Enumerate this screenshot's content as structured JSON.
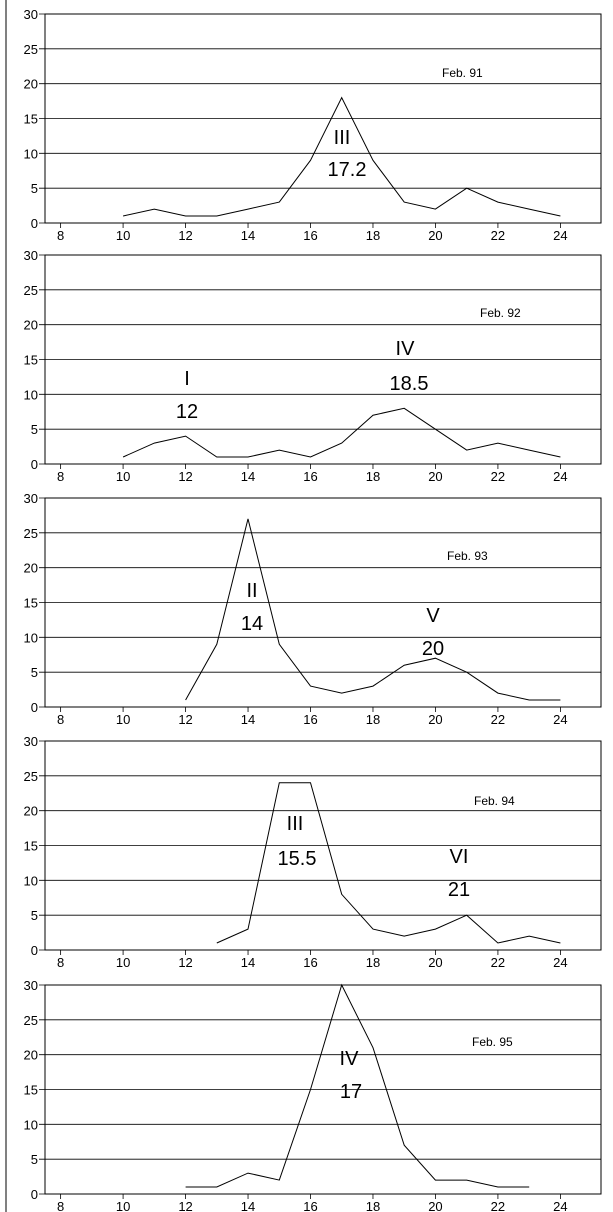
{
  "chart_data": [
    {
      "type": "line",
      "label": "Feb. 91",
      "x": [
        10,
        11,
        12,
        13,
        14,
        15,
        16,
        17,
        18,
        19,
        20,
        21,
        22,
        23,
        24
      ],
      "y": [
        1,
        2,
        1,
        1,
        2,
        3,
        9,
        18,
        9,
        3,
        2,
        5,
        3,
        2,
        1
      ],
      "peaks": [
        {
          "numeral": "III",
          "value": "17.2",
          "x": 17
        }
      ],
      "xticks": [
        8,
        10,
        12,
        14,
        16,
        18,
        20,
        22,
        24
      ],
      "yticks": [
        0,
        5,
        10,
        15,
        20,
        25,
        30
      ],
      "xlim": [
        7.5,
        25.3
      ],
      "ylim": [
        0,
        30
      ],
      "grid": true
    },
    {
      "type": "line",
      "label": "Feb. 92",
      "x": [
        10,
        11,
        12,
        13,
        14,
        15,
        16,
        17,
        18,
        19,
        20,
        21,
        22,
        23,
        24
      ],
      "y": [
        1,
        3,
        4,
        1,
        1,
        2,
        1,
        3,
        7,
        8,
        5,
        2,
        3,
        2,
        1
      ],
      "peaks": [
        {
          "numeral": "I",
          "value": "12",
          "x": 12
        },
        {
          "numeral": "IV",
          "value": "18.5",
          "x": 19
        }
      ],
      "xticks": [
        8,
        10,
        12,
        14,
        16,
        18,
        20,
        22,
        24
      ],
      "yticks": [
        0,
        5,
        10,
        15,
        20,
        25,
        30
      ],
      "xlim": [
        7.5,
        25.3
      ],
      "ylim": [
        0,
        30
      ],
      "grid": true
    },
    {
      "type": "line",
      "label": "Feb. 93",
      "x": [
        12,
        13,
        14,
        15,
        16,
        17,
        18,
        19,
        20,
        21,
        22,
        23,
        24
      ],
      "y": [
        1,
        9,
        27,
        9,
        3,
        2,
        3,
        6,
        7,
        5,
        2,
        1,
        1
      ],
      "peaks": [
        {
          "numeral": "II",
          "value": "14",
          "x": 14
        },
        {
          "numeral": "V",
          "value": "20",
          "x": 20
        }
      ],
      "xticks": [
        8,
        10,
        12,
        14,
        16,
        18,
        20,
        22,
        24
      ],
      "yticks": [
        0,
        5,
        10,
        15,
        20,
        25,
        30
      ],
      "xlim": [
        7.5,
        25.3
      ],
      "ylim": [
        0,
        30
      ],
      "grid": true
    },
    {
      "type": "line",
      "label": "Feb. 94",
      "x": [
        13,
        14,
        15,
        16,
        17,
        18,
        19,
        20,
        21,
        22,
        23,
        24
      ],
      "y": [
        1,
        3,
        24,
        24,
        8,
        3,
        2,
        3,
        5,
        1,
        2,
        1
      ],
      "peaks": [
        {
          "numeral": "III",
          "value": "15.5",
          "x": 15.5
        },
        {
          "numeral": "VI",
          "value": "21",
          "x": 21
        }
      ],
      "xticks": [
        8,
        10,
        12,
        14,
        16,
        18,
        20,
        22,
        24
      ],
      "yticks": [
        0,
        5,
        10,
        15,
        20,
        25,
        30
      ],
      "xlim": [
        7.5,
        25.3
      ],
      "ylim": [
        0,
        30
      ],
      "grid": true
    },
    {
      "type": "line",
      "label": "Feb. 95",
      "x": [
        12,
        13,
        14,
        15,
        16,
        17,
        18,
        19,
        20,
        21,
        22,
        23
      ],
      "y": [
        1,
        1,
        3,
        2,
        15,
        30,
        21,
        7,
        2,
        2,
        1,
        1
      ],
      "peaks": [
        {
          "numeral": "IV",
          "value": "17",
          "x": 17
        }
      ],
      "xticks": [
        8,
        10,
        12,
        14,
        16,
        18,
        20,
        22,
        24
      ],
      "yticks": [
        0,
        5,
        10,
        15,
        20,
        25,
        30
      ],
      "xlim": [
        7.5,
        25.3
      ],
      "ylim": [
        0,
        30
      ],
      "grid": true
    }
  ]
}
